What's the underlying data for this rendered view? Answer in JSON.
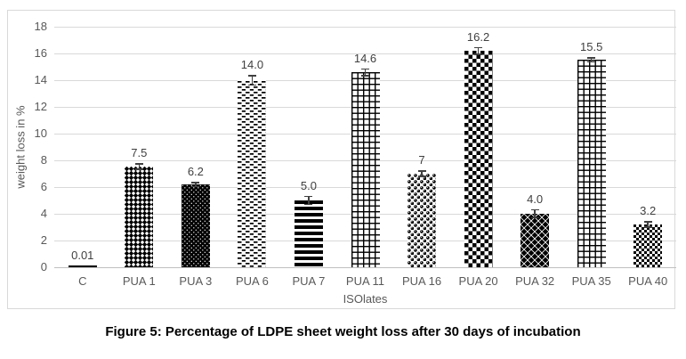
{
  "figure": {
    "caption": "Figure 5: Percentage of LDPE sheet weight loss after 30 days of incubation"
  },
  "chart_data": {
    "type": "bar",
    "title": "",
    "xlabel": "ISOlates",
    "ylabel": "weight loss in %",
    "ylim": [
      0,
      18
    ],
    "yticks": [
      0,
      2,
      4,
      6,
      8,
      10,
      12,
      14,
      16,
      18
    ],
    "grid": true,
    "legend_position": "none",
    "categories": [
      "C",
      "PUA 1",
      "PUA 3",
      "PUA 6",
      "PUA 7",
      "PUA 11",
      "PUA 16",
      "PUA 20",
      "PUA 32",
      "PUA 35",
      "PUA 40"
    ],
    "values": [
      0.01,
      7.5,
      6.2,
      14.0,
      5.0,
      14.6,
      7,
      16.2,
      4.0,
      15.5,
      3.2
    ],
    "data_labels": [
      "0.01",
      "7.5",
      "6.2",
      "14.0",
      "5.0",
      "14.6",
      "7",
      "16.2",
      "4.0",
      "15.5",
      "3.2"
    ],
    "error_bars": [
      0,
      0.25,
      0.2,
      0.4,
      0.35,
      0.3,
      0.25,
      0.3,
      0.35,
      0.2,
      0.25
    ],
    "bar_patterns": [
      "solid",
      "diamond-small",
      "dots-on-black",
      "dashes",
      "hstripes",
      "grid",
      "spheres",
      "checker-large",
      "diamonds-black",
      "grid",
      "checker-small"
    ],
    "colors": {
      "bar_foreground": "#000000",
      "bar_background": "#ffffff",
      "gridline": "#d9d9d9",
      "axis_line": "#bfbfbf",
      "tick_label": "#595959",
      "data_label": "#404040",
      "chart_border": "#d9d9d9",
      "caption_text": "#000000"
    }
  }
}
